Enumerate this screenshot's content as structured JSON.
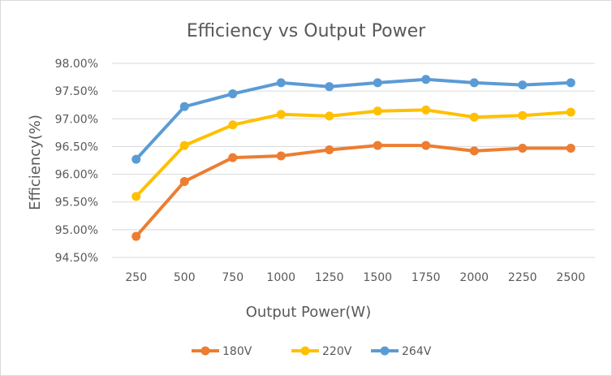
{
  "chart_data": {
    "type": "line",
    "title": "Efficiency vs Output Power",
    "xlabel": "Output Power(W)",
    "ylabel": "Efficiency(%)",
    "categories": [
      "250",
      "500",
      "750",
      "1000",
      "1250",
      "1500",
      "1750",
      "2000",
      "2250",
      "2500"
    ],
    "y_ticks": [
      "94.50%",
      "95.00%",
      "95.50%",
      "96.00%",
      "96.50%",
      "97.00%",
      "97.50%",
      "98.00%"
    ],
    "ylim": [
      94.5,
      98.0
    ],
    "grid": true,
    "legend_position": "bottom",
    "series": [
      {
        "name": "180V",
        "color": "#ED7D31",
        "values": [
          94.88,
          95.87,
          96.3,
          96.33,
          96.44,
          96.52,
          96.52,
          96.42,
          96.47,
          96.47
        ]
      },
      {
        "name": "220V",
        "color": "#FFC000",
        "values": [
          95.6,
          96.52,
          96.89,
          97.08,
          97.05,
          97.14,
          97.16,
          97.03,
          97.06,
          97.12
        ]
      },
      {
        "name": "264V",
        "color": "#5B9BD5",
        "values": [
          96.27,
          97.22,
          97.45,
          97.65,
          97.58,
          97.65,
          97.71,
          97.65,
          97.61,
          97.65
        ]
      }
    ]
  }
}
